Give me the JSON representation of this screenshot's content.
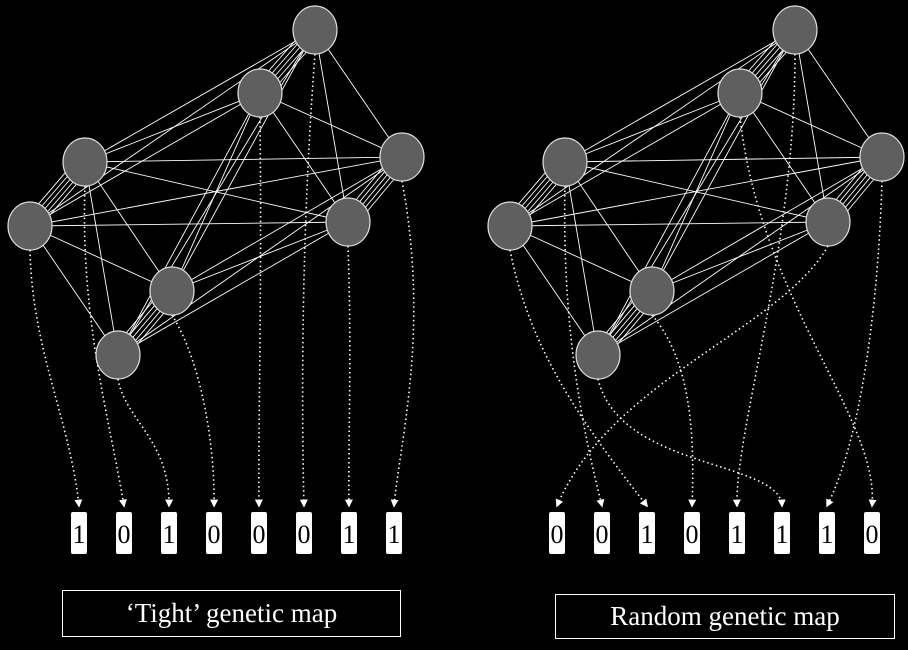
{
  "panels": [
    {
      "caption": "‘Tight’ genetic map",
      "genes": [
        "1",
        "0",
        "1",
        "0",
        "0",
        "0",
        "1",
        "1"
      ]
    },
    {
      "caption": "Random genetic map",
      "genes": [
        "0",
        "0",
        "1",
        "0",
        "1",
        "1",
        "1",
        "0"
      ]
    }
  ],
  "colors": {
    "background": "#000000",
    "node": "#5f5f5f",
    "edge": "#ffffff",
    "gene_box": "#ffffff"
  }
}
